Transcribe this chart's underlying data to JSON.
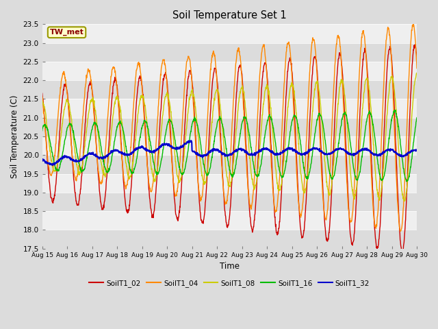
{
  "title": "Soil Temperature Set 1",
  "xlabel": "Time",
  "ylabel": "Soil Temperature (C)",
  "ylim": [
    17.5,
    23.5
  ],
  "xlim": [
    0,
    360
  ],
  "annotation": "TW_met",
  "bg_color": "#dcdcdc",
  "stripe_color": "#efefef",
  "series_colors": {
    "SoilT1_02": "#cc0000",
    "SoilT1_04": "#ff8800",
    "SoilT1_08": "#cccc00",
    "SoilT1_16": "#00bb00",
    "SoilT1_32": "#0000cc"
  },
  "ytick_labels": [
    "17.5",
    "18.0",
    "18.5",
    "19.0",
    "19.5",
    "20.0",
    "20.5",
    "21.0",
    "21.5",
    "22.0",
    "22.5",
    "23.0",
    "23.5"
  ],
  "ytick_values": [
    17.5,
    18.0,
    18.5,
    19.0,
    19.5,
    20.0,
    20.5,
    21.0,
    21.5,
    22.0,
    22.5,
    23.0,
    23.5
  ],
  "xtick_labels": [
    "Aug 15",
    "Aug 16",
    "Aug 17",
    "Aug 18",
    "Aug 19",
    "Aug 20",
    "Aug 21",
    "Aug 22",
    "Aug 23",
    "Aug 24",
    "Aug 25",
    "Aug 26",
    "Aug 27",
    "Aug 28",
    "Aug 29",
    "Aug 30"
  ],
  "xtick_positions": [
    0,
    24,
    48,
    72,
    96,
    120,
    144,
    168,
    192,
    216,
    240,
    264,
    288,
    312,
    336,
    360
  ]
}
